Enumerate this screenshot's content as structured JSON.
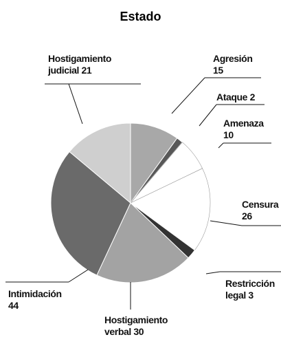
{
  "chart_data": {
    "type": "pie",
    "title": "Estado",
    "categories": [
      "Agresión",
      "Ataque",
      "Amenaza",
      "Censura",
      "Restricción legal",
      "Hostigamiento verbal",
      "Intimidación",
      "Hostigamiento judicial"
    ],
    "values": [
      15,
      2,
      10,
      26,
      3,
      30,
      44,
      21
    ],
    "colors": [
      "#a8a8a8",
      "#585858",
      "#ffffff",
      "#ffffff",
      "#333333",
      "#a3a3a3",
      "#6a6a6a",
      "#cfcfcf"
    ]
  }
}
